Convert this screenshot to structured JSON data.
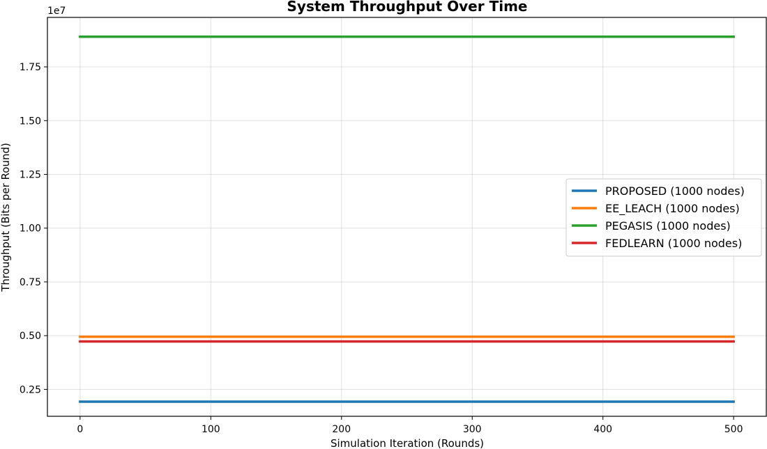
{
  "chart_data": {
    "type": "line",
    "title": "System Throughput Over Time",
    "xlabel": "Simulation Iteration (Rounds)",
    "ylabel": "Throughput (Bits per Round)",
    "y_scale_label": "1e7",
    "xlim": [
      -25,
      525
    ],
    "ylim": [
      1250000,
      19800000
    ],
    "xticks": [
      0,
      100,
      200,
      300,
      400,
      500
    ],
    "xtick_labels": [
      "0",
      "100",
      "200",
      "300",
      "400",
      "500"
    ],
    "yticks": [
      2500000,
      5000000,
      7500000,
      10000000,
      12500000,
      15000000,
      17500000
    ],
    "ytick_labels": [
      "0.25",
      "0.50",
      "0.75",
      "1.00",
      "1.25",
      "1.50",
      "1.75"
    ],
    "grid": true,
    "legend_position": "center-right",
    "x": [
      0,
      500
    ],
    "series": [
      {
        "name": "PROPOSED (1000 nodes)",
        "color": "#1f77b4",
        "values": [
          1930000,
          1930000
        ]
      },
      {
        "name": "EE_LEACH (1000 nodes)",
        "color": "#ff7f0e",
        "values": [
          4950000,
          4950000
        ]
      },
      {
        "name": "PEGASIS (1000 nodes)",
        "color": "#2ca02c",
        "values": [
          18900000,
          18900000
        ]
      },
      {
        "name": "FEDLEARN (1000 nodes)",
        "color": "#d62728",
        "values": [
          4730000,
          4730000
        ]
      }
    ]
  }
}
